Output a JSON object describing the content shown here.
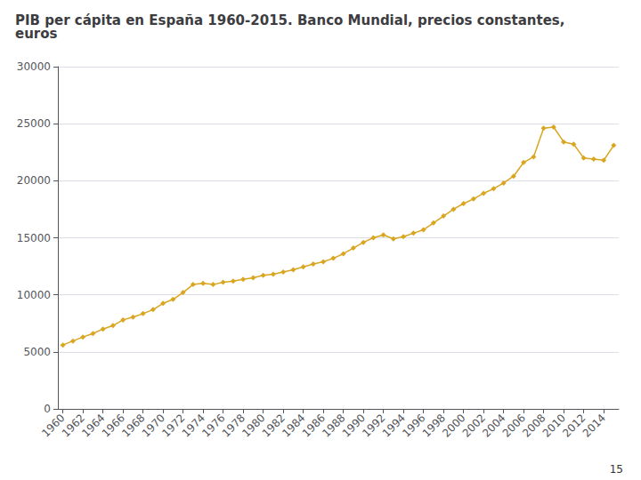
{
  "chart_data": {
    "type": "line",
    "title": "PIB per cápita en España 1960-2015. Banco Mundial, precios constantes,\neuros",
    "x": [
      1960,
      1961,
      1962,
      1963,
      1964,
      1965,
      1966,
      1967,
      1968,
      1969,
      1970,
      1971,
      1972,
      1973,
      1974,
      1975,
      1976,
      1977,
      1978,
      1979,
      1980,
      1981,
      1982,
      1983,
      1984,
      1985,
      1986,
      1987,
      1988,
      1989,
      1990,
      1991,
      1992,
      1993,
      1994,
      1995,
      1996,
      1997,
      1998,
      1999,
      2000,
      2001,
      2002,
      2003,
      2004,
      2005,
      2006,
      2007,
      2008,
      2009,
      2010,
      2011,
      2012,
      2013,
      2014,
      2015
    ],
    "values": [
      5600,
      5950,
      6300,
      6600,
      7000,
      7300,
      7800,
      8050,
      8350,
      8700,
      9250,
      9600,
      10200,
      10900,
      11000,
      10900,
      11100,
      11200,
      11350,
      11500,
      11700,
      11800,
      12000,
      12200,
      12450,
      12700,
      12900,
      13200,
      13600,
      14100,
      14600,
      15000,
      15250,
      14900,
      15100,
      15400,
      15700,
      16300,
      16900,
      17500,
      18000,
      18400,
      18900,
      19300,
      19800,
      20400,
      21600,
      22100,
      24600,
      24700,
      23400,
      23200,
      22000,
      21900,
      21800,
      23100
    ],
    "color": "#DAA520",
    "marker": "diamond",
    "xlim": [
      1959.5,
      2015.5
    ],
    "xticks": [
      1960,
      1962,
      1964,
      1966,
      1968,
      1970,
      1972,
      1974,
      1976,
      1978,
      1980,
      1982,
      1984,
      1986,
      1988,
      1990,
      1992,
      1994,
      1996,
      1998,
      2000,
      2002,
      2004,
      2006,
      2008,
      2010,
      2012,
      2014
    ],
    "ylim": [
      0,
      30000
    ],
    "yticks": [
      0,
      5000,
      10000,
      15000,
      20000,
      25000,
      30000
    ],
    "grid": true,
    "annotations": [
      "15"
    ]
  }
}
